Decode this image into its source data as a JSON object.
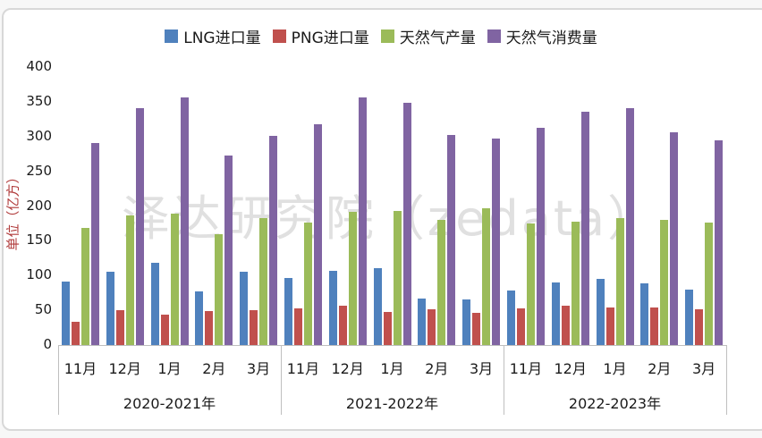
{
  "legend": {
    "items": [
      {
        "label": "LNG进口量",
        "color": "#4F81BD"
      },
      {
        "label": "PNG进口量",
        "color": "#C0504D"
      },
      {
        "label": "天然气产量",
        "color": "#9BBB59"
      },
      {
        "label": "天然气消费量",
        "color": "#8064A2"
      }
    ]
  },
  "watermark": {
    "text": "泽达研究院（zedata）",
    "color": "#e0e0e0"
  },
  "axis": {
    "line_color": "#bfbfbf",
    "tick_label_color": "#1a1a1a",
    "ylabel_color": "#b03a3a"
  },
  "chart_data": {
    "type": "bar",
    "title": "",
    "xlabel": "",
    "ylabel": "单位（亿方）",
    "ylim": [
      0,
      400
    ],
    "y_ticks": [
      0,
      50,
      100,
      150,
      200,
      250,
      300,
      350,
      400
    ],
    "grid": false,
    "legend_position": "top",
    "categories": [
      "11月",
      "12月",
      "1月",
      "2月",
      "3月",
      "11月",
      "12月",
      "1月",
      "2月",
      "3月",
      "11月",
      "12月",
      "1月",
      "2月",
      "3月"
    ],
    "year_groups": [
      {
        "label": "2020-2021年",
        "months": [
          "11月",
          "12月",
          "1月",
          "2月",
          "3月"
        ]
      },
      {
        "label": "2021-2022年",
        "months": [
          "11月",
          "12月",
          "1月",
          "2月",
          "3月"
        ]
      },
      {
        "label": "2022-2023年",
        "months": [
          "11月",
          "12月",
          "1月",
          "2月",
          "3月"
        ]
      }
    ],
    "series": [
      {
        "name": "LNG进口量",
        "color": "#4F81BD",
        "values": [
          91,
          105,
          118,
          77,
          105,
          96,
          107,
          110,
          67,
          65,
          79,
          90,
          95,
          89,
          80
        ]
      },
      {
        "name": "PNG进口量",
        "color": "#C0504D",
        "values": [
          34,
          50,
          44,
          49,
          50,
          53,
          56,
          48,
          52,
          46,
          53,
          56,
          54,
          54,
          51
        ]
      },
      {
        "name": "天然气产量",
        "color": "#9BBB59",
        "values": [
          168,
          186,
          189,
          159,
          183,
          176,
          192,
          193,
          180,
          197,
          175,
          178,
          182,
          180,
          176
        ]
      },
      {
        "name": "天然气消费量",
        "color": "#8064A2",
        "values": [
          291,
          341,
          356,
          273,
          301,
          318,
          356,
          348,
          302,
          297,
          313,
          336,
          341,
          306,
          295
        ]
      }
    ]
  }
}
